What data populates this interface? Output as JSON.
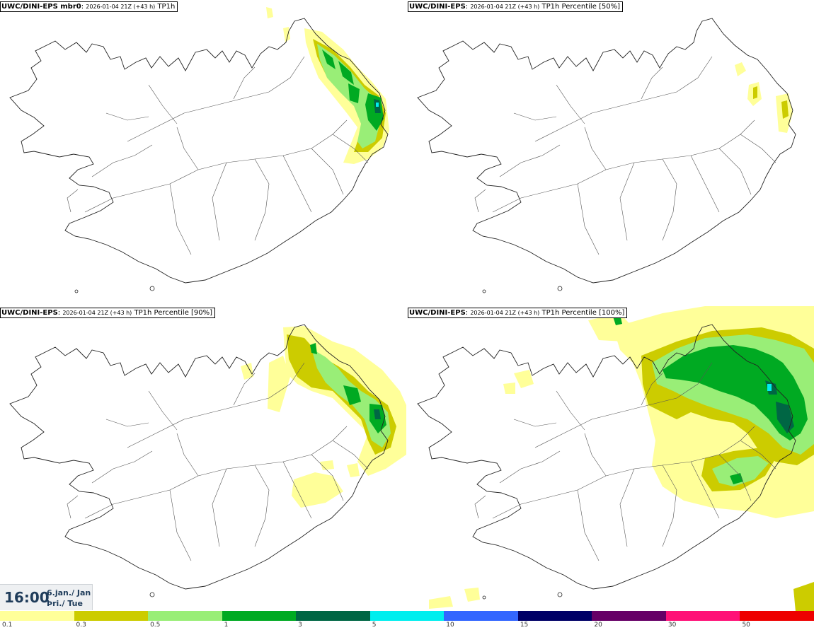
{
  "panels": [
    {
      "id": "p0",
      "model": "UWC/DINI-EPS mbr0",
      "run": "2026-01-04 21Z (+43 h)",
      "field": "TP1h"
    },
    {
      "id": "p1",
      "model": "UWC/DINI-EPS",
      "run": "2026-01-04 21Z (+43 h)",
      "field": "TP1h Percentile [50%]"
    },
    {
      "id": "p2",
      "model": "UWC/DINI-EPS",
      "run": "2026-01-04 21Z (+43 h)",
      "field": "TP1h Percentile [90%]"
    },
    {
      "id": "p3",
      "model": "UWC/DINI-EPS",
      "run": "2026-01-04 21Z (+43 h)",
      "field": "TP1h Percentile [100%]"
    }
  ],
  "valid_time": {
    "time": "16:00",
    "date_line1": "6.jan./ Jan",
    "date_line2": "Þri./ Tue"
  },
  "legend": {
    "ticks": [
      "0.1",
      "0.3",
      "0.5",
      "1",
      "3",
      "5",
      "10",
      "15",
      "20",
      "30",
      "50"
    ],
    "colors": [
      "#ffff99",
      "#cccc00",
      "#99ee77",
      "#00aa22",
      "#006644",
      "#00eeee",
      "#3366ff",
      "#000066",
      "#660066",
      "#ff1177",
      "#ee0000"
    ]
  },
  "map_colors": {
    "coast": "#222222",
    "roads": "#555555"
  }
}
